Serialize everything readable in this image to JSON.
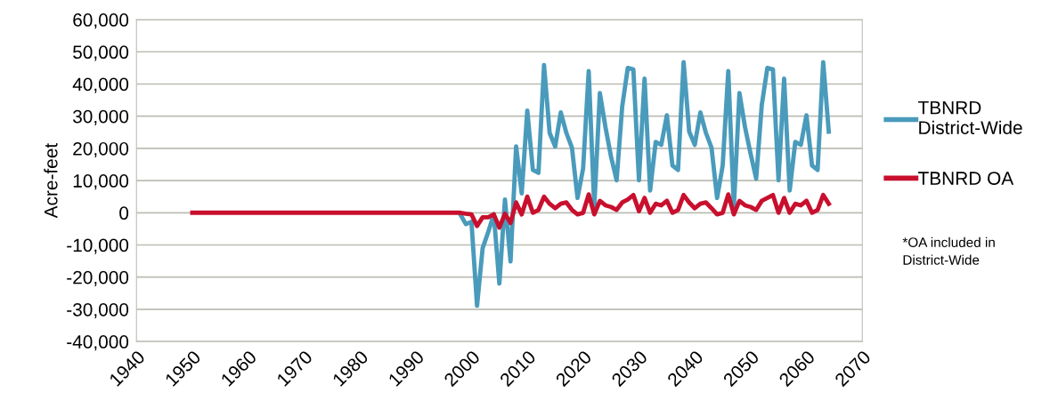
{
  "chart_data": {
    "type": "line",
    "ylabel": "Acre-feet",
    "xlim": [
      1940,
      2070
    ],
    "xticks": [
      1940,
      1950,
      1960,
      1970,
      1980,
      1990,
      2000,
      2010,
      2020,
      2030,
      2040,
      2050,
      2060,
      2070
    ],
    "ylim": [
      -40000,
      60000
    ],
    "yticks": [
      {
        "value": -40000,
        "label": "-40,000"
      },
      {
        "value": -30000,
        "label": "-30,000"
      },
      {
        "value": -20000,
        "label": "-20,000"
      },
      {
        "value": -10000,
        "label": "-10,000"
      },
      {
        "value": 0,
        "label": "0"
      },
      {
        "value": 10000,
        "label": "10,000"
      },
      {
        "value": 20000,
        "label": "20,000"
      },
      {
        "value": 30000,
        "label": "30,000"
      },
      {
        "value": 40000,
        "label": "40,000"
      },
      {
        "value": 50000,
        "label": "50,000"
      },
      {
        "value": 60000,
        "label": "60,000"
      }
    ],
    "grid": "y",
    "legend": "right",
    "marker": "none",
    "line_style": "solid",
    "annotations": [
      "*OA included in District-Wide"
    ],
    "series": [
      {
        "name": "TBNRD District-Wide",
        "color": "#4a9bbb",
        "x": [
          1998,
          1999,
          2000,
          2001,
          2002,
          2003,
          2004,
          2005,
          2006,
          2007,
          2008,
          2009,
          2010,
          2011,
          2012,
          2013,
          2014,
          2015,
          2016,
          2017,
          2018,
          2019,
          2020,
          2021,
          2022,
          2023,
          2024,
          2025,
          2026,
          2027,
          2028,
          2029,
          2030,
          2031,
          2032,
          2033,
          2034,
          2035,
          2036,
          2037,
          2038,
          2039,
          2040,
          2041,
          2042,
          2043,
          2044,
          2045,
          2046,
          2047,
          2048,
          2049,
          2050,
          2051,
          2052,
          2053,
          2054,
          2055,
          2056,
          2057,
          2058,
          2059,
          2060,
          2061,
          2062,
          2063,
          2064
        ],
        "values": [
          -500,
          -3500,
          -2800,
          -28900,
          -11000,
          -6000,
          -500,
          -22000,
          4100,
          -15100,
          20600,
          6000,
          31700,
          13300,
          12400,
          45900,
          24800,
          20600,
          31200,
          24800,
          20200,
          4600,
          13800,
          44000,
          1800,
          37200,
          26600,
          17400,
          10100,
          33000,
          45000,
          44500,
          10100,
          41700,
          6900,
          22000,
          21100,
          30300,
          14700,
          13300,
          46800,
          25200,
          21100,
          31200,
          24800,
          20200,
          4600,
          14700,
          44000,
          1800,
          37200,
          26600,
          18300,
          10600,
          33500,
          45000,
          44500,
          10100,
          41700,
          6900,
          22000,
          21100,
          30300,
          14700,
          13300,
          46800,
          25200
        ]
      },
      {
        "name": "TBNRD OA",
        "color": "#c8102e",
        "x": [
          1950,
          1951,
          1952,
          1953,
          1954,
          1955,
          1956,
          1957,
          1958,
          1959,
          1960,
          1961,
          1962,
          1963,
          1964,
          1965,
          1966,
          1967,
          1968,
          1969,
          1970,
          1971,
          1972,
          1973,
          1974,
          1975,
          1976,
          1977,
          1978,
          1979,
          1980,
          1981,
          1982,
          1983,
          1984,
          1985,
          1986,
          1987,
          1988,
          1989,
          1990,
          1991,
          1992,
          1993,
          1994,
          1995,
          1996,
          1997,
          1998,
          1999,
          2000,
          2001,
          2002,
          2003,
          2004,
          2005,
          2006,
          2007,
          2008,
          2009,
          2010,
          2011,
          2012,
          2013,
          2014,
          2015,
          2016,
          2017,
          2018,
          2019,
          2020,
          2021,
          2022,
          2023,
          2024,
          2025,
          2026,
          2027,
          2028,
          2029,
          2030,
          2031,
          2032,
          2033,
          2034,
          2035,
          2036,
          2037,
          2038,
          2039,
          2040,
          2041,
          2042,
          2043,
          2044,
          2045,
          2046,
          2047,
          2048,
          2049,
          2050,
          2051,
          2052,
          2053,
          2054,
          2055,
          2056,
          2057,
          2058,
          2059,
          2060,
          2061,
          2062,
          2063,
          2064
        ],
        "values": [
          0,
          0,
          0,
          0,
          0,
          0,
          0,
          0,
          0,
          0,
          0,
          0,
          0,
          0,
          0,
          0,
          0,
          0,
          0,
          0,
          0,
          0,
          0,
          0,
          0,
          0,
          0,
          0,
          0,
          0,
          0,
          0,
          0,
          0,
          0,
          0,
          0,
          0,
          0,
          0,
          0,
          0,
          0,
          0,
          0,
          0,
          0,
          0,
          0,
          -300,
          -500,
          -4100,
          -1400,
          -1400,
          -500,
          -4600,
          -300,
          -3200,
          3200,
          -500,
          5000,
          0,
          900,
          5000,
          2800,
          1400,
          2800,
          3200,
          900,
          -500,
          0,
          5700,
          -500,
          3700,
          2300,
          1800,
          900,
          3200,
          4100,
          5500,
          500,
          4600,
          0,
          2800,
          2300,
          3700,
          0,
          900,
          5500,
          3200,
          1400,
          2800,
          3200,
          1400,
          -500,
          0,
          5700,
          -500,
          3700,
          2300,
          1800,
          900,
          3700,
          4600,
          5500,
          0,
          4600,
          0,
          2800,
          2300,
          3700,
          0,
          900,
          5500,
          2800
        ]
      }
    ]
  }
}
